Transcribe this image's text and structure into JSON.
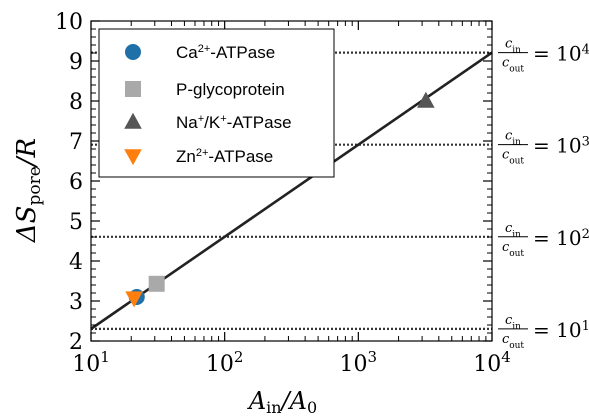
{
  "chart_data": {
    "type": "scatter",
    "x_scale": "log",
    "xlim": [
      10,
      10000
    ],
    "ylim": [
      2,
      10
    ],
    "x_ticks": [
      {
        "base": "10",
        "exp": "1"
      },
      {
        "base": "10",
        "exp": "2"
      },
      {
        "base": "10",
        "exp": "3"
      },
      {
        "base": "10",
        "exp": "4"
      }
    ],
    "y_ticks": [
      "2",
      "3",
      "4",
      "5",
      "6",
      "7",
      "8",
      "9",
      "10"
    ],
    "xlabel": {
      "a": "A",
      "sub1": "in",
      "slash": "/A",
      "sub2": "0"
    },
    "ylabel": {
      "delta": "ΔS",
      "sub": "pore",
      "rest": "/R"
    },
    "fit_line": {
      "x": [
        10,
        10000
      ],
      "y": [
        2.303,
        9.21
      ]
    },
    "reference_lines": [
      {
        "y": 2.303,
        "num": "c",
        "num_sub": "in",
        "den": "c",
        "den_sub": "out",
        "eq": "= 10",
        "exp": "1"
      },
      {
        "y": 4.605,
        "num": "c",
        "num_sub": "in",
        "den": "c",
        "den_sub": "out",
        "eq": "= 10",
        "exp": "2"
      },
      {
        "y": 6.908,
        "num": "c",
        "num_sub": "in",
        "den": "c",
        "den_sub": "out",
        "eq": "= 10",
        "exp": "3"
      },
      {
        "y": 9.21,
        "num": "c",
        "num_sub": "in",
        "den": "c",
        "den_sub": "out",
        "eq": "= 10",
        "exp": "4"
      }
    ],
    "series": [
      {
        "name": {
          "a": "Ca",
          "sup": "2+",
          "b": "-ATPase"
        },
        "marker": "circle",
        "color": "#1f6fa8",
        "x": 22,
        "y": 3.1
      },
      {
        "name": {
          "a": "P-glycoprotein",
          "sup": "",
          "b": ""
        },
        "marker": "square",
        "color": "#a9a9a9",
        "x": 31,
        "y": 3.43
      },
      {
        "name": {
          "a": "Na",
          "sup": "+",
          "b": "/K",
          "sup2": "+",
          "c": "-ATPase"
        },
        "marker": "triangle-up",
        "color": "#555555",
        "x": 3200,
        "y": 8.0
      },
      {
        "name": {
          "a": "Zn",
          "sup": "2+",
          "b": "-ATPase"
        },
        "marker": "triangle-down",
        "color": "#ff7f0e",
        "x": 21,
        "y": 3.07
      }
    ],
    "legend_position": "top-left"
  }
}
